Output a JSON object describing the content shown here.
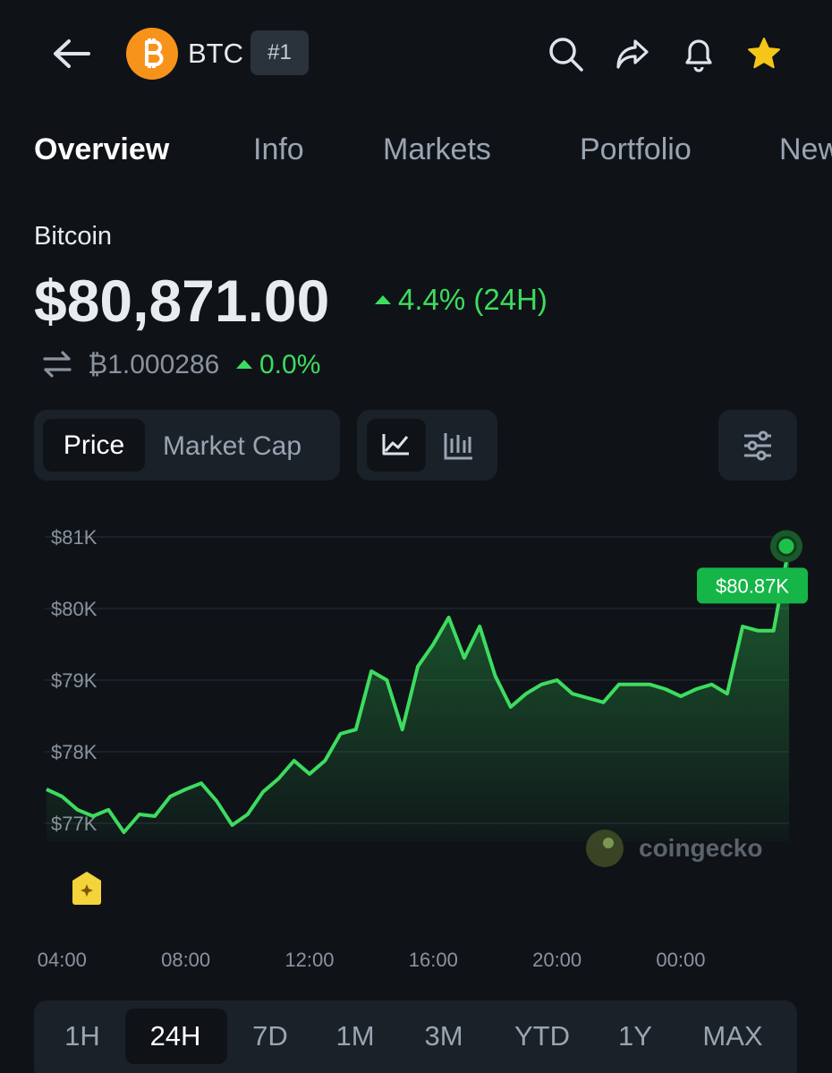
{
  "header": {
    "symbol": "BTC",
    "rank": "#1"
  },
  "tabs": [
    "Overview",
    "Info",
    "Markets",
    "Portfolio",
    "News"
  ],
  "coin": {
    "name": "Bitcoin",
    "price": "$80,871.00",
    "change": "4.4% (24H)",
    "btc_price": "₿1.000286",
    "btc_change": "0.0%"
  },
  "chart_toggle": [
    "Price",
    "Market Cap"
  ],
  "watermark": "coingecko",
  "ranges": [
    "1H",
    "24H",
    "7D",
    "1M",
    "3M",
    "YTD",
    "1Y",
    "MAX"
  ],
  "chart_data": {
    "type": "line",
    "x": [
      "03:30",
      "04:00",
      "04:30",
      "05:00",
      "05:30",
      "06:00",
      "06:30",
      "07:00",
      "07:30",
      "08:00",
      "08:30",
      "09:00",
      "09:30",
      "10:00",
      "10:30",
      "11:00",
      "11:30",
      "12:00",
      "12:30",
      "13:00",
      "13:30",
      "14:00",
      "14:30",
      "15:00",
      "15:30",
      "16:00",
      "16:30",
      "17:00",
      "17:30",
      "18:00",
      "18:30",
      "19:00",
      "19:30",
      "20:00",
      "20:30",
      "21:00",
      "21:30",
      "22:00",
      "22:30",
      "23:00",
      "23:30",
      "00:00",
      "00:30",
      "01:00",
      "01:30",
      "02:00",
      "02:30",
      "03:00",
      "03:30"
    ],
    "series": [
      {
        "color": "#3ddc5f",
        "values": [
          77475,
          77375,
          77190,
          77100,
          77190,
          76875,
          77125,
          77100,
          77375,
          77475,
          77560,
          77310,
          76975,
          77125,
          77440,
          77625,
          77875,
          77690,
          77875,
          78250,
          78310,
          79125,
          79000,
          78310,
          79190,
          79500,
          79875,
          79310,
          79750,
          79060,
          78625,
          78810,
          78940,
          79000,
          78810,
          78750,
          78690,
          78940,
          78940,
          78940,
          78875,
          78775,
          78875,
          78940,
          78810,
          79750,
          79690,
          79690,
          80870
        ],
        "value_labels": [
          null,
          null,
          null,
          null,
          null,
          null,
          null,
          null,
          null,
          null,
          null,
          null,
          null,
          null,
          null,
          null,
          null,
          null,
          null,
          null,
          null,
          null,
          null,
          null,
          null,
          null,
          null,
          null,
          null,
          null,
          null,
          null,
          null,
          null,
          null,
          null,
          null,
          null,
          null,
          null,
          null,
          null,
          null,
          null,
          null,
          null,
          null,
          null,
          "$80.87K"
        ]
      }
    ],
    "ylim": [
      76750,
      81125
    ],
    "yticks": [
      {
        "value": 77000,
        "label": "$77K"
      },
      {
        "value": 78000,
        "label": "$78K"
      },
      {
        "value": 79000,
        "label": "$79K"
      },
      {
        "value": 80000,
        "label": "$80K"
      },
      {
        "value": 81000,
        "label": "$81K"
      }
    ],
    "xticks": [
      "04:00",
      "08:00",
      "12:00",
      "16:00",
      "20:00",
      "00:00"
    ],
    "grid": true
  }
}
